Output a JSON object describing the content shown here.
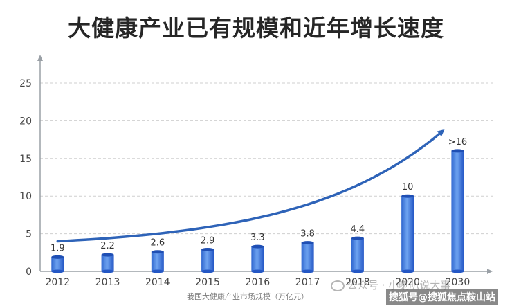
{
  "title": "大健康产业已有规模和近年增长速度",
  "caption": "我国大健康产业市场规模（万亿元）",
  "watermarks": {
    "primary": "公众号 · 小喇叭说大事",
    "secondary": "搜狐号@搜狐焦点鞍山站"
  },
  "colors": {
    "bar_top": "#5b93ea",
    "bar_bottom": "#2457c5",
    "bar_cap": "#1f4fb4",
    "trend_arrow": "#2e63b8",
    "grid": "#cfcfcf",
    "axis": "#9aa0a6",
    "text": "#333333",
    "tick_text": "#444444"
  },
  "chart_data": {
    "type": "bar",
    "categories": [
      "2012",
      "2013",
      "2014",
      "2015",
      "2016",
      "2017",
      "2018",
      "2020",
      "2030"
    ],
    "values": [
      1.9,
      2.2,
      2.6,
      2.9,
      3.3,
      3.8,
      4.4,
      10,
      16
    ],
    "data_labels": [
      "1.9",
      "2.2",
      "2.6",
      "2.9",
      "3.3",
      "3.8",
      "4.4",
      "10",
      ">16"
    ],
    "yticks": [
      0,
      5,
      10,
      15,
      20,
      25
    ],
    "ylim": [
      0,
      25
    ],
    "grid": true,
    "bar_style": "cylinder",
    "trend_arrow": true
  }
}
